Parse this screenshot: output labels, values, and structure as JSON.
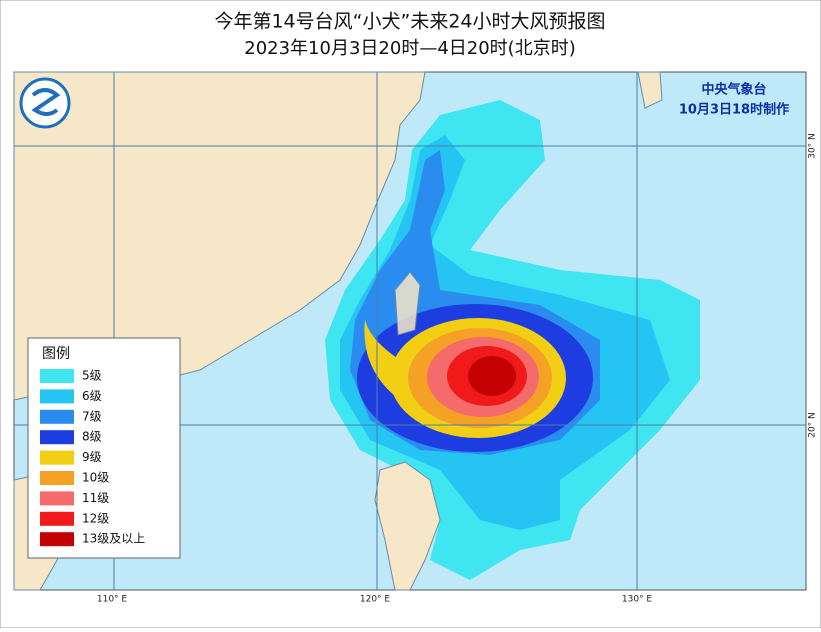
{
  "header": {
    "title": "今年第14号台风“小犬”未来24小时大风预报图",
    "subtitle": "2023年10月3日20时—4日20时(北京时)"
  },
  "agency": {
    "name": "中央气象台",
    "issued": "10月3日18时制作"
  },
  "axes": {
    "longitude": [
      "110° E",
      "120° E",
      "130° E"
    ],
    "latitude": [
      "30° N",
      "20° N"
    ]
  },
  "legend": {
    "title": "图例",
    "items": [
      {
        "label": "5级",
        "color": "#3fe6f2"
      },
      {
        "label": "6级",
        "color": "#26c4f2"
      },
      {
        "label": "7级",
        "color": "#2b8cf0"
      },
      {
        "label": "8级",
        "color": "#1d3de0"
      },
      {
        "label": "9级",
        "color": "#f2cf14"
      },
      {
        "label": "10级",
        "color": "#f5a125"
      },
      {
        "label": "11级",
        "color": "#f56a6a"
      },
      {
        "label": "12级",
        "color": "#f01a1a"
      },
      {
        "label": "13级及以上",
        "color": "#c40000"
      }
    ]
  }
}
